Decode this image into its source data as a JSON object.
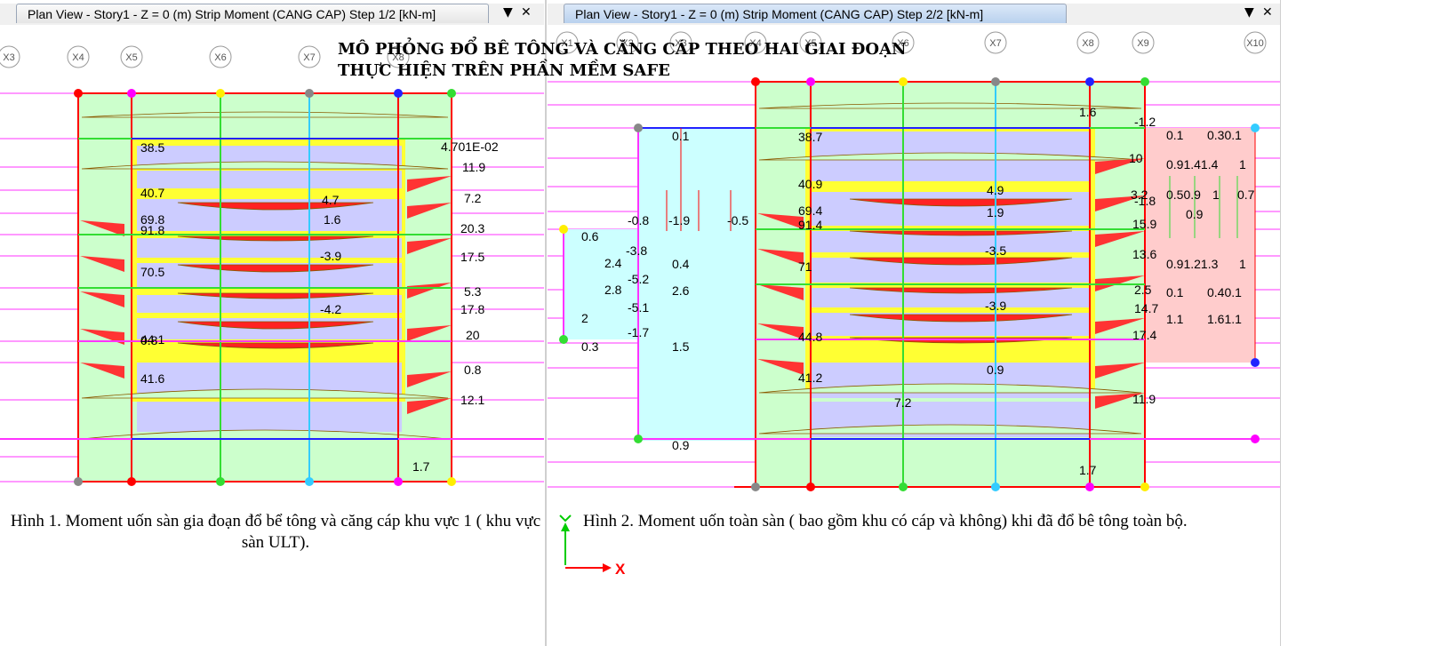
{
  "title": {
    "line1": "MÔ PHỎNG ĐỔ BÊ TÔNG VÀ CĂNG CÁP THEO HAI GIAI ĐOẠN",
    "line2": "THỰC HIỆN TRÊN PHẦN MỀM SAFE"
  },
  "window1": {
    "tab_title": "Plan View - Story1 - Z = 0 (m)   Strip Moment  (CANG CAP)  Step 1/2  [kN-m]",
    "dropdown_icon": "▼",
    "close_icon": "✕",
    "grid_labels": [
      "X3",
      "X4",
      "X5",
      "X6",
      "X7",
      "X8"
    ],
    "values": [
      "38.5",
      "4.701E-02",
      "11.9",
      "40.7",
      "4.7",
      "7.2",
      "69.8",
      "91.8",
      "1.6",
      "20.3",
      "17.5",
      "-3.9",
      "70.5",
      "5.3",
      "17.8",
      "-4.2",
      "44.1",
      "20",
      "0.8",
      "0.8",
      "41.6",
      "12.1",
      "1.7"
    ],
    "caption": "Hình 1. Moment uốn sàn gia đoạn đổ bể tông và căng cáp khu vực 1 ( khu vực sàn ULT)."
  },
  "window2": {
    "tab_title": "Plan View - Story1 - Z = 0 (m)   Strip Moment  (CANG CAP)  Step 2/2  [kN-m]",
    "dropdown_icon": "▼",
    "close_icon": "✕",
    "grid_labels": [
      "X1",
      "X2",
      "X3",
      "X4",
      "X5",
      "X6",
      "X7",
      "X8",
      "X9",
      "X10"
    ],
    "values": [
      "1.6",
      "-1.2",
      "0.1",
      "38.7",
      "0.1",
      "0.30.1",
      "10",
      "0.91.41.4",
      "1",
      "40.9",
      "4.9",
      "3.2",
      "-1.8",
      "0.50.9",
      "1",
      "0.7",
      "69.4",
      "91.4",
      "1.9",
      "0.9",
      "-0.8",
      "-1.9",
      "-0.5",
      "15.9",
      "0.6",
      "-3.8",
      "-3.5",
      "13.6",
      "2.4",
      "0.4",
      "71",
      "0.91.21.3",
      "1",
      "-5.2",
      "2.8",
      "2.6",
      "2.5",
      "0.1",
      "0.40.1",
      "-5.1",
      "-3.9",
      "14.7",
      "2",
      "1.1",
      "1.61.1",
      "-1.7",
      "44.8",
      "17.4",
      "0.3",
      "1.5",
      "0.9",
      "41.2",
      "7.2",
      "11.9",
      "0.9",
      "1.7"
    ],
    "caption": "Hình 2. Moment uốn toàn sàn ( bao gồm khu có cáp và không) khi đã đổ bê tông toàn bộ.",
    "axis_x": "X"
  },
  "colors": {
    "green_fill": "#ccffcc",
    "yellow_fill": "#ffff33",
    "lavender_fill": "#ccccff",
    "red_fill": "#ff2222",
    "cyan_fill": "#ccffff",
    "pink_fill": "#ffcccc",
    "magenta_line": "#ff33ff",
    "green_line": "#33dd33",
    "red_line": "#ff0000",
    "cyan_line": "#33ccff"
  }
}
